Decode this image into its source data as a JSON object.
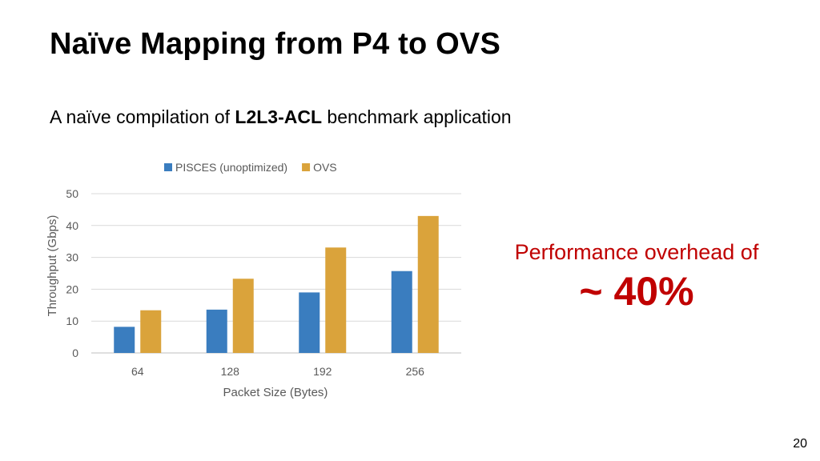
{
  "slide": {
    "title": "Naïve Mapping from P4 to OVS",
    "subtitle_prefix": "A naïve compilation of ",
    "subtitle_bold": "L2L3-ACL",
    "subtitle_suffix": " benchmark application",
    "callout_line1": "Performance overhead of",
    "callout_line2": "~ 40%",
    "page_number": "20",
    "accent_color": "#c00000"
  },
  "chart_data": {
    "type": "bar",
    "categories": [
      "64",
      "128",
      "192",
      "256"
    ],
    "series": [
      {
        "name": "PISCES (unoptimized)",
        "values": [
          8.2,
          13.6,
          19.0,
          25.7
        ],
        "color": "#3a7dbf"
      },
      {
        "name": "OVS",
        "values": [
          13.4,
          23.3,
          33.1,
          43.0
        ],
        "color": "#daa33b"
      }
    ],
    "xlabel": "Packet Size (Bytes)",
    "ylabel": "Throughput (Gbps)",
    "ylim": [
      0,
      50
    ],
    "yticks": [
      "0",
      "10",
      "20",
      "30",
      "40",
      "50"
    ],
    "grid": true,
    "legend_position": "top"
  }
}
